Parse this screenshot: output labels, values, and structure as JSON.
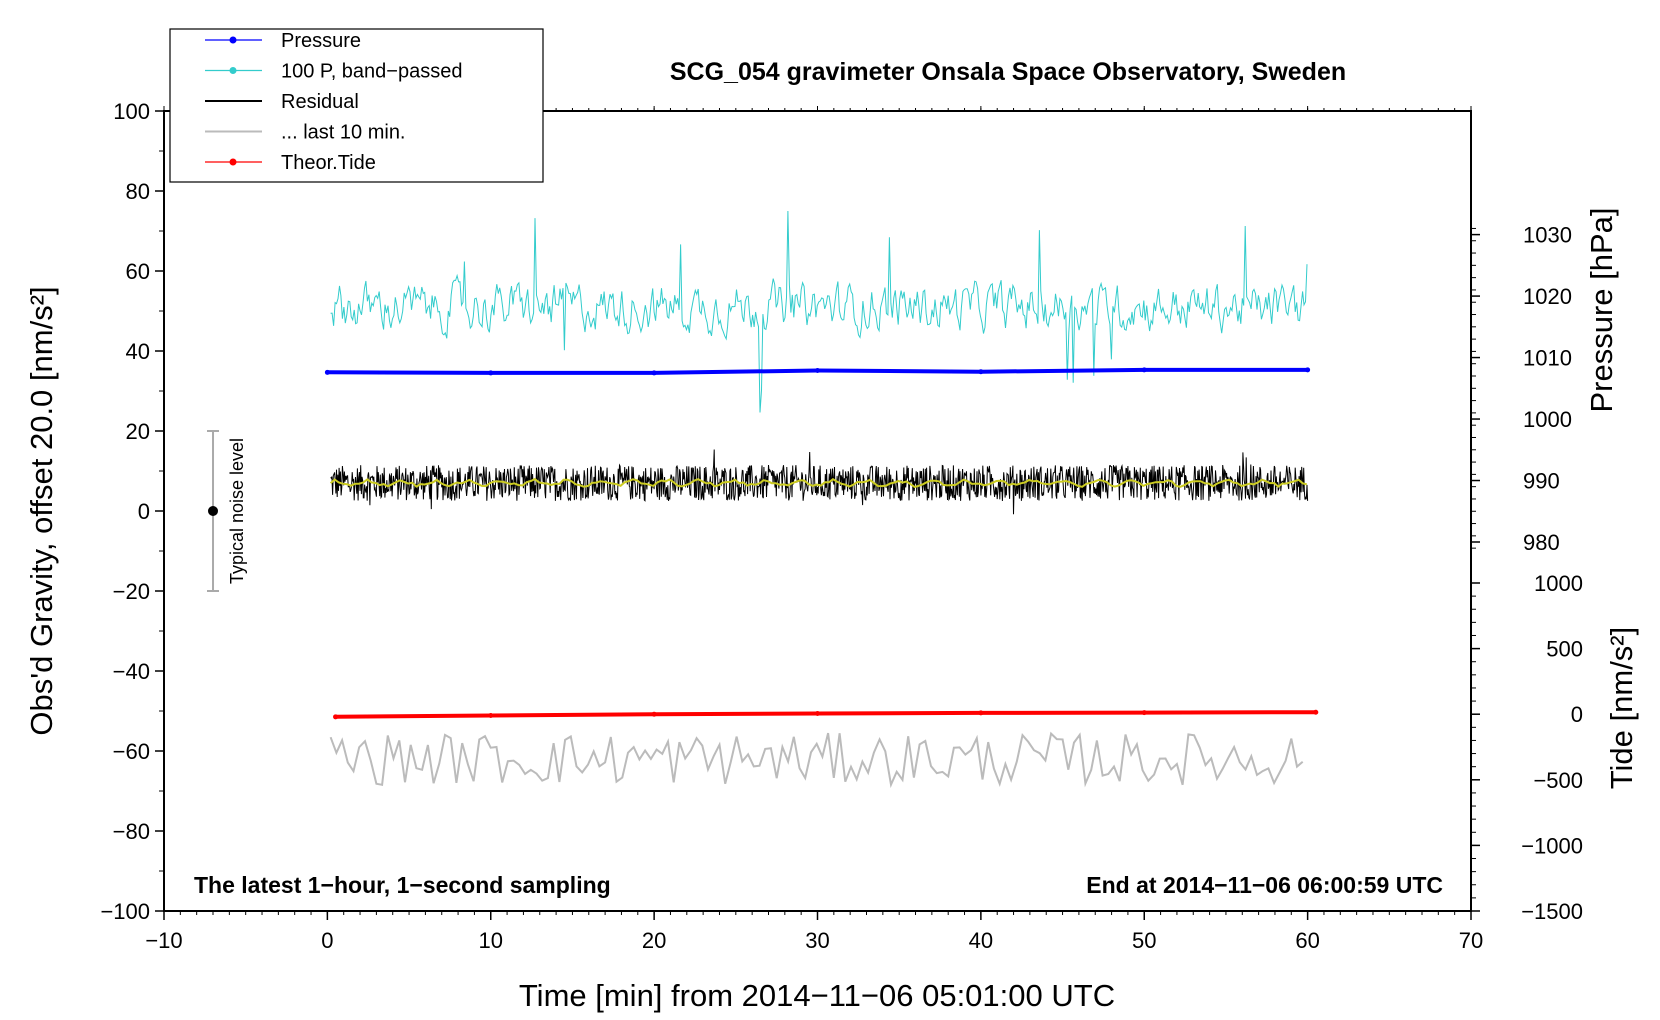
{
  "chart_data": {
    "type": "line",
    "title": "SCG_054 gravimeter Onsala Space Observatory, Sweden",
    "xlabel": "Time [min] from 2014−11−06 05:01:00 UTC",
    "ylabel": "Obs'd Gravity, offset 20.0 [nm/s²]",
    "ylabel_right_pressure": "Pressure [hPa]",
    "ylabel_right_tide": "Tide [nm/s²]",
    "xlim": [
      -10,
      70
    ],
    "ylim": [
      -100,
      100
    ],
    "pressure_lim": [
      977,
      1031
    ],
    "tide_lim": [
      -1500,
      1000
    ],
    "x_ticks": [
      "−10",
      "0",
      "10",
      "20",
      "30",
      "40",
      "50",
      "60",
      "70"
    ],
    "y_ticks": [
      "100",
      "80",
      "60",
      "40",
      "20",
      "0",
      "−20",
      "−40",
      "−60",
      "−80",
      "−100"
    ],
    "pressure_ticks": [
      "1030",
      "1020",
      "1010",
      "1000",
      "990",
      "980"
    ],
    "tide_ticks": [
      "1000",
      "500",
      "0",
      "−500",
      "−1000",
      "−1500"
    ],
    "annotation_left": "The latest 1−hour, 1−second sampling",
    "annotation_right": "End at 2014−11−06 06:00:59 UTC",
    "noise_bar": {
      "label": "Typical noise level",
      "x": -7,
      "center": 0,
      "low": -20,
      "high": 20
    },
    "legend": [
      {
        "label": "Pressure",
        "color": "#0000ff",
        "marker": true
      },
      {
        "label": "100 P, band−passed",
        "color": "#33cccc",
        "marker": true
      },
      {
        "label": "Residual",
        "color": "#000000",
        "marker": false
      },
      {
        "label": "... last 10 min.",
        "color": "#bbbbbb",
        "marker": false
      },
      {
        "label": "Theor.Tide",
        "color": "#ff0000",
        "marker": true
      }
    ],
    "series": [
      {
        "name": "Pressure",
        "axis": "pressure",
        "color": "#0000ff",
        "x": [
          0,
          10,
          20,
          30,
          40,
          50,
          60
        ],
        "values": [
          1007.6,
          1007.5,
          1007.5,
          1007.9,
          1007.7,
          1008.0,
          1008.0
        ]
      },
      {
        "name": "100 P, band−passed",
        "axis": "left",
        "color": "#33cccc",
        "range": [
          15,
          75
        ],
        "mean": 51,
        "x": [
          0.2,
          60
        ]
      },
      {
        "name": "Residual",
        "axis": "left",
        "color": "#000000",
        "range": [
          -1,
          16
        ],
        "mean": 7,
        "x": [
          0.2,
          60
        ]
      },
      {
        "name": "... last 10 min.",
        "axis": "left",
        "color": "#bbbbbb",
        "range": [
          -69,
          -54
        ],
        "mean": -62,
        "x": [
          0.2,
          60
        ]
      },
      {
        "name": "Theor.Tide",
        "axis": "tide",
        "color": "#ff0000",
        "x": [
          0.5,
          10,
          20,
          30,
          40,
          50,
          60.5
        ],
        "values": [
          -20,
          -10,
          0,
          5,
          10,
          12,
          15
        ]
      }
    ]
  }
}
